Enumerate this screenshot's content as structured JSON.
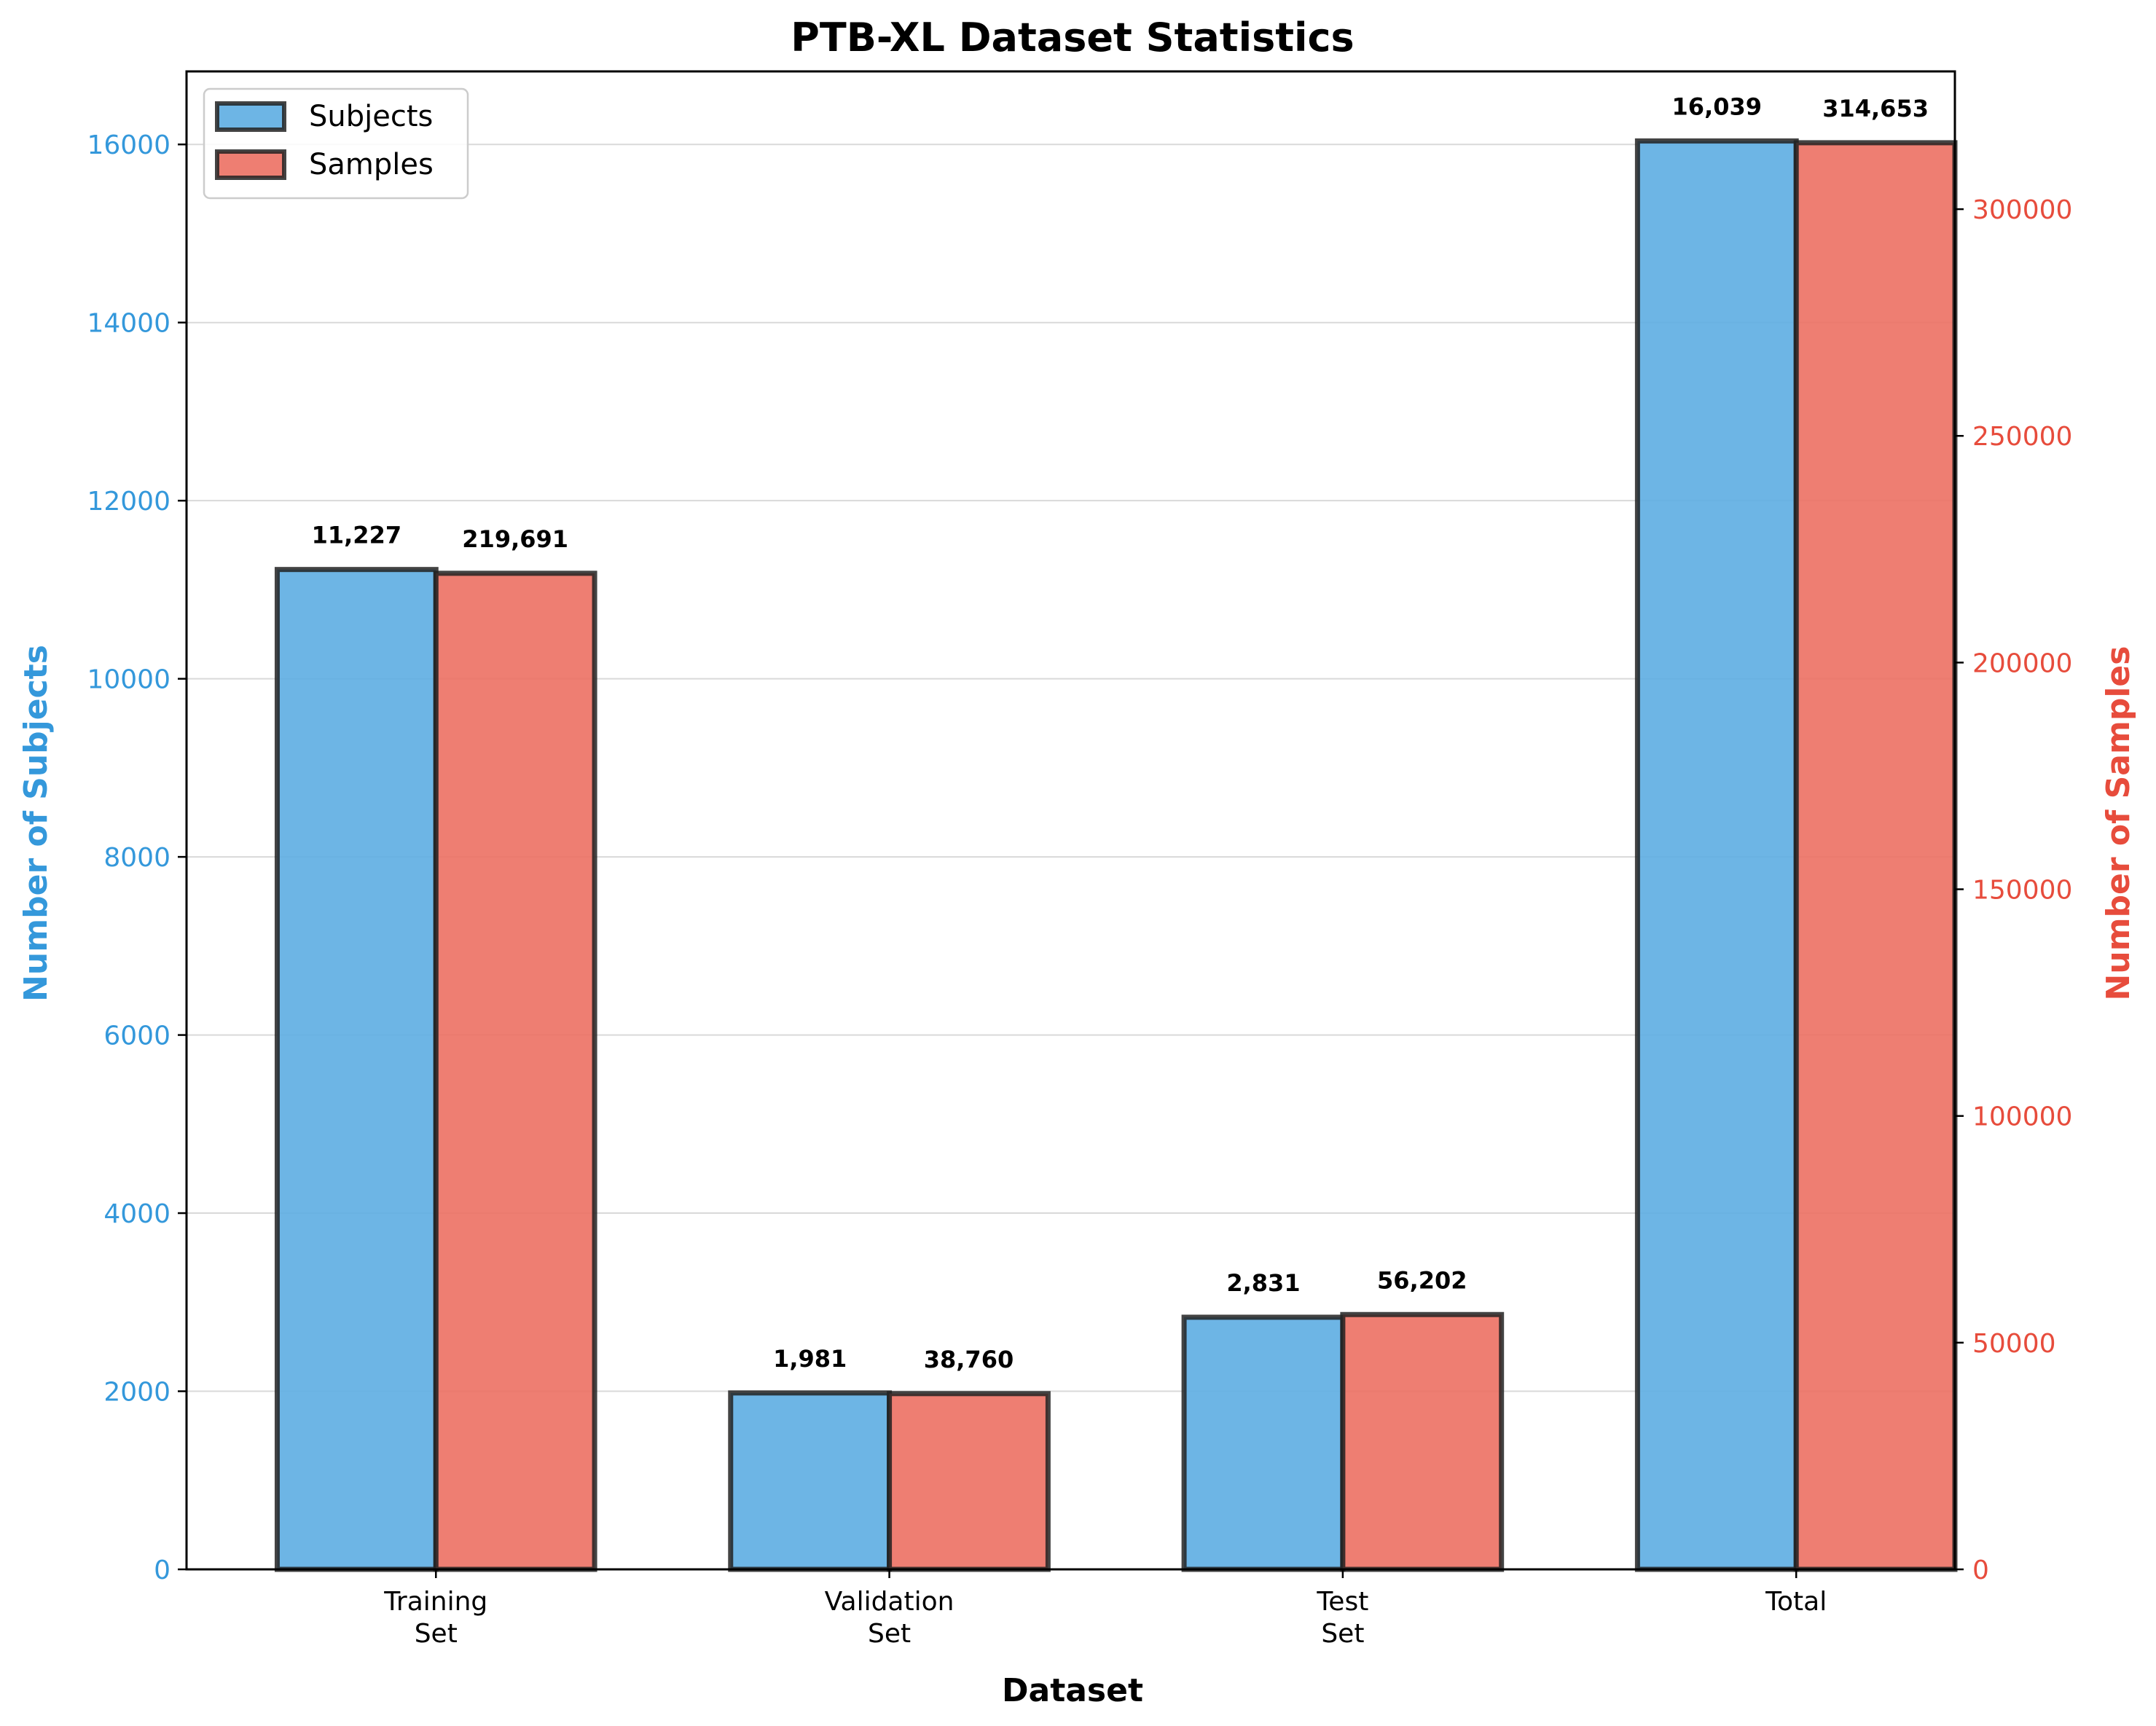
{
  "chart_data": {
    "type": "bar",
    "title": "PTB-XL Dataset Statistics",
    "xlabel": "Dataset",
    "ylabel_left": "Number of Subjects",
    "ylabel_right": "Number of Samples",
    "categories": [
      [
        "Training",
        "Set"
      ],
      [
        "Validation",
        "Set"
      ],
      [
        "Test",
        "Set"
      ],
      [
        "Total"
      ]
    ],
    "series": [
      {
        "name": "Subjects",
        "axis": "left",
        "color": "#5dade2",
        "values": [
          11227,
          1981,
          2831,
          16039
        ],
        "labels": [
          "11,227",
          "1,981",
          "2,831",
          "16,039"
        ]
      },
      {
        "name": "Samples",
        "axis": "right",
        "color": "#ec7063",
        "values": [
          219691,
          38760,
          56202,
          314653
        ],
        "labels": [
          "219,691",
          "38,760",
          "56,202",
          "314,653"
        ]
      }
    ],
    "ylim_left": [
      0,
      16820
    ],
    "ylim_right": [
      0,
      330386
    ],
    "yticks_left": [
      "0",
      "2000",
      "4000",
      "6000",
      "8000",
      "10000",
      "12000",
      "14000",
      "16000"
    ],
    "yticks_right": [
      "0",
      "50000",
      "100000",
      "150000",
      "200000",
      "250000",
      "300000"
    ],
    "left_axis_color": "#3498db",
    "right_axis_color": "#e74c3c",
    "grid": "horizontal",
    "legend": "top-left"
  }
}
